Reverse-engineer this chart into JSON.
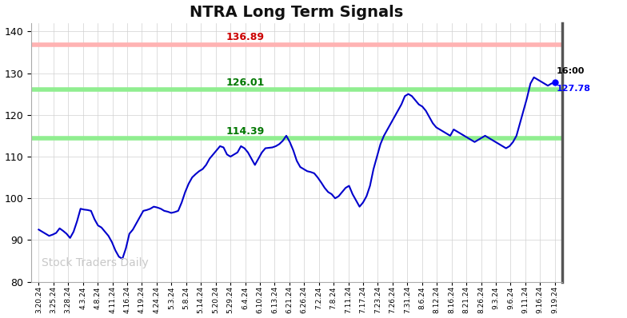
{
  "title": "NTRA Long Term Signals",
  "title_fontsize": 14,
  "title_fontweight": "bold",
  "background_color": "#ffffff",
  "line_color": "#0000cc",
  "line_width": 1.5,
  "ylim": [
    80,
    142
  ],
  "yticks": [
    80,
    90,
    100,
    110,
    120,
    130,
    140
  ],
  "red_line": 136.89,
  "red_line_color": "#ffb3b3",
  "red_label_color": "#cc0000",
  "green_line1": 126.01,
  "green_line2": 114.39,
  "green_line_color": "#90ee90",
  "green_label_color": "#007700",
  "last_price": 127.78,
  "last_time": "16:00",
  "last_price_color": "#0000ff",
  "last_time_color": "#000000",
  "watermark": "Stock Traders Daily",
  "watermark_color": "#c8c8c8",
  "grid_color": "#d0d0d0",
  "xtick_labels": [
    "3.20.24",
    "3.25.24",
    "3.28.24",
    "4.3.24",
    "4.8.24",
    "4.11.24",
    "4.16.24",
    "4.19.24",
    "4.24.24",
    "5.3.24",
    "5.8.24",
    "5.14.24",
    "5.20.24",
    "5.29.24",
    "6.4.24",
    "6.10.24",
    "6.13.24",
    "6.21.24",
    "6.26.24",
    "7.2.24",
    "7.8.24",
    "7.11.24",
    "7.17.24",
    "7.23.24",
    "7.26.24",
    "7.31.24",
    "8.6.24",
    "8.12.24",
    "8.16.24",
    "8.21.24",
    "8.26.24",
    "9.3.24",
    "9.6.24",
    "9.11.24",
    "9.16.24",
    "9.19.24"
  ],
  "detailed_prices": [
    92.5,
    92.0,
    91.5,
    91.0,
    91.3,
    91.7,
    92.8,
    92.2,
    91.5,
    90.5,
    92.0,
    94.5,
    97.5,
    97.3,
    97.2,
    97.0,
    95.0,
    93.5,
    93.0,
    92.0,
    91.0,
    89.5,
    87.5,
    86.0,
    85.5,
    88.0,
    91.5,
    92.5,
    94.0,
    95.5,
    97.0,
    97.2,
    97.5,
    98.0,
    97.8,
    97.5,
    97.0,
    96.8,
    96.5,
    96.7,
    97.0,
    99.0,
    101.5,
    103.5,
    105.0,
    105.8,
    106.5,
    107.0,
    108.0,
    109.5,
    110.5,
    111.5,
    112.5,
    112.2,
    110.5,
    110.0,
    110.5,
    111.0,
    112.5,
    112.0,
    111.0,
    109.5,
    108.0,
    109.5,
    111.0,
    112.0,
    112.1,
    112.2,
    112.5,
    113.0,
    113.8,
    115.0,
    113.5,
    111.5,
    109.0,
    107.5,
    107.0,
    106.5,
    106.3,
    106.0,
    105.0,
    103.8,
    102.5,
    101.5,
    101.0,
    100.0,
    100.5,
    101.5,
    102.5,
    103.0,
    101.0,
    99.5,
    98.0,
    99.0,
    100.5,
    103.0,
    107.0,
    110.0,
    113.0,
    115.0,
    116.5,
    118.0,
    119.5,
    121.0,
    122.5,
    124.5,
    125.0,
    124.5,
    123.5,
    122.5,
    122.0,
    121.0,
    119.5,
    118.0,
    117.0,
    116.5,
    116.0,
    115.5,
    115.0,
    116.5,
    116.0,
    115.5,
    115.0,
    114.5,
    114.0,
    113.5,
    114.0,
    114.5,
    115.0,
    114.5,
    114.0,
    113.5,
    113.0,
    112.5,
    112.0,
    112.5,
    113.5,
    115.0,
    118.0,
    121.0,
    124.0,
    127.5,
    129.0,
    128.5,
    128.0,
    127.5,
    127.0,
    127.5,
    127.78
  ]
}
